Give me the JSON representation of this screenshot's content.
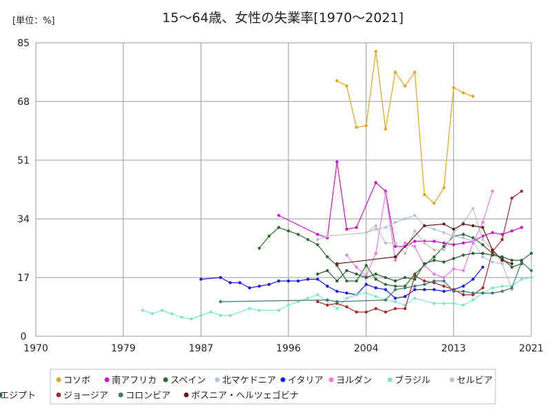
{
  "chart_data": {
    "type": "line",
    "title": "15〜64歳、女性の失業率[1970〜2021]",
    "unit_label": "[単位：%]",
    "xlim": [
      1970,
      2021
    ],
    "ylim": [
      0,
      85
    ],
    "x_ticks": [
      1970,
      1979,
      1987,
      1996,
      2004,
      2013,
      2021
    ],
    "y_ticks": [
      0,
      17,
      34,
      51,
      68,
      85
    ],
    "grid": true,
    "legend_position": "bottom",
    "series": [
      {
        "name": "コソボ",
        "color": "#E3A51A",
        "x": [
          2001,
          2002,
          2003,
          2004,
          2005,
          2006,
          2007,
          2008,
          2009,
          2010,
          2011,
          2012,
          2013,
          2014,
          2015,
          2016,
          2017
        ],
        "y": [
          74,
          72.5,
          60.5,
          61,
          82.5,
          60,
          76.5,
          72.5,
          76.5,
          41,
          38.5,
          43,
          72,
          70.5,
          69.5,
          null,
          null
        ]
      },
      {
        "name": "南アフリカ",
        "color": "#CC12CC",
        "x": [
          1995,
          1999,
          2000,
          2001,
          2002,
          2003,
          2004,
          2005,
          2006,
          2007,
          2008,
          2009,
          2010,
          2011,
          2012,
          2013,
          2014,
          2015,
          2016,
          2017,
          2018,
          2019,
          2020
        ],
        "y": [
          35,
          29.5,
          28.5,
          50.5,
          31,
          31.5,
          null,
          44.5,
          42,
          26,
          26,
          27.5,
          27.5,
          27.5,
          27,
          26.5,
          27,
          27.5,
          29,
          30,
          29.5,
          30.5,
          31.5
        ]
      },
      {
        "name": "スペイン",
        "color": "#2E6B2E",
        "x": [
          1993,
          1994,
          1995,
          1996,
          1997,
          1998,
          1999,
          2000,
          2001,
          2002,
          2003,
          2004,
          2005,
          2006,
          2007,
          2008,
          2009,
          2010,
          2011,
          2012,
          2013,
          2014,
          2015,
          2016,
          2017,
          2018,
          2019,
          2020,
          2021
        ],
        "y": [
          25.5,
          29,
          31.5,
          30.5,
          29.5,
          28,
          26.5,
          23,
          20.5,
          16,
          16,
          20.5,
          16.5,
          15,
          14.5,
          14.5,
          18,
          20.5,
          23,
          26,
          29,
          29.5,
          28.5,
          26.5,
          24,
          22.5,
          20,
          21,
          null
        ]
      },
      {
        "name": "北マケドニア",
        "color": "#B0C4DE",
        "x": [
          2004,
          2005,
          2006,
          2007,
          2008,
          2009,
          2010,
          2011,
          2012,
          2013,
          2014,
          2015,
          2016,
          2017,
          2018,
          2019,
          2020
        ],
        "y": [
          30,
          31,
          31.5,
          33,
          34,
          35,
          32,
          31,
          30,
          29,
          28.5,
          27.5,
          23,
          21.5,
          21,
          null,
          null
        ]
      },
      {
        "name": "イタリア",
        "color": "#1A1AE6",
        "x": [
          1987,
          1989,
          1990,
          1991,
          1992,
          1993,
          1994,
          1995,
          1996,
          1997,
          1998,
          1999,
          2000,
          2001,
          2002,
          2003,
          2004,
          2005,
          2006,
          2007,
          2008,
          2009,
          2010,
          2011,
          2012,
          2013,
          2014,
          2015,
          2016
        ],
        "y": [
          16.5,
          17,
          15.5,
          15.5,
          14,
          14.5,
          15,
          16,
          16,
          16,
          16.5,
          16.5,
          14.5,
          13,
          12.5,
          12,
          15,
          14,
          13.5,
          11,
          11.5,
          13.5,
          13.5,
          13.5,
          13,
          13.5,
          14.5,
          16.5,
          20
        ]
      },
      {
        "name": "ヨルダン",
        "color": "#E77BE7",
        "x": [
          2002,
          2003,
          2004,
          2005,
          2006,
          2007,
          2008,
          2009,
          2010,
          2011,
          2012,
          2013,
          2014,
          2015,
          2016,
          2017
        ],
        "y": [
          23.5,
          20,
          17.5,
          24,
          41.5,
          22,
          27,
          26,
          20.5,
          18,
          17,
          19.5,
          19,
          27,
          33,
          42
        ]
      },
      {
        "name": "ブラジル",
        "color": "#7EE8C0",
        "x": [
          1981,
          1982,
          1983,
          1984,
          1985,
          1986,
          1987,
          1988,
          1989,
          1990,
          1992,
          1993,
          1995,
          1996,
          1997,
          1998,
          1999,
          2001,
          2002,
          2003,
          2004,
          2005,
          2006,
          2007,
          2008,
          2009,
          2011,
          2012,
          2013,
          2014,
          2015,
          2016,
          2017,
          2018,
          2019,
          2020,
          2021
        ],
        "y": [
          7.5,
          6.5,
          7.5,
          6.5,
          5.5,
          5,
          6,
          7,
          6,
          6,
          8,
          7.5,
          7.5,
          9,
          10,
          11,
          12,
          8,
          11,
          12,
          12.5,
          11.5,
          10.5,
          10,
          9,
          11,
          9.5,
          9.5,
          9.5,
          9,
          10.5,
          12.5,
          14,
          14.5,
          14.5,
          16.5,
          17
        ]
      },
      {
        "name": "セルビア",
        "color": "#C0C0C0",
        "x": [
          1999,
          2000,
          2004,
          2005,
          2006,
          2007,
          2008,
          2009,
          2010,
          2011,
          2012,
          2013,
          2014,
          2015,
          2016,
          2017,
          2018,
          2019
        ],
        "y": [
          28,
          29,
          30,
          32,
          27,
          27,
          24,
          30.5,
          27,
          25,
          25,
          30,
          33,
          37,
          28,
          25,
          21,
          13.5
        ]
      },
      {
        "name": "ジョージア",
        "color": "#A52A2A",
        "x": [
          1999,
          2000,
          2001,
          2002,
          2003,
          2004,
          2005,
          2006,
          2007,
          2008,
          2009,
          2010,
          2011,
          2012,
          2013,
          2014,
          2015,
          2016,
          2017,
          2018,
          2019,
          2020
        ],
        "y": [
          10,
          9,
          9.5,
          8.5,
          7,
          7,
          8,
          7,
          8,
          8,
          17.5,
          16,
          15.5,
          14.5,
          13.5,
          12,
          12,
          14,
          24.5,
          28,
          40,
          42
        ]
      },
      {
        "name": "コロンビア",
        "color": "#3A7A78",
        "x": [
          1989,
          2000,
          2001,
          2002,
          2003,
          2004,
          2005,
          2006,
          2007,
          2008,
          2009,
          2010,
          2011,
          2012,
          2013,
          2014,
          2015,
          2016,
          2017,
          2018,
          2019,
          2020,
          2021
        ],
        "y": [
          10,
          10.5,
          10,
          null,
          null,
          null,
          null,
          10.5,
          13.5,
          14,
          14.5,
          15,
          16,
          16,
          13,
          13,
          12.5,
          12.5,
          12.5,
          13,
          14,
          21.5,
          19
        ]
      },
      {
        "name": "ボスニア・ヘルツェゴビナ",
        "color": "#6B1A1A",
        "x": [
          2001,
          2007,
          2010,
          2012,
          2013,
          2014,
          2015,
          2016,
          2017,
          2018,
          2019,
          2020
        ],
        "y": [
          21,
          23,
          32,
          32.5,
          31,
          32.5,
          32,
          31.5,
          25,
          22,
          21,
          null
        ]
      },
      {
        "name": "エジプト",
        "color": "#2F5E3C",
        "x": [
          1999,
          2000,
          2001,
          2002,
          2003,
          2004,
          2005,
          2006,
          2007,
          2008,
          2009,
          2010,
          2011,
          2012,
          2013,
          2014,
          2015,
          2016,
          2017,
          2018,
          2019,
          2020,
          2021
        ],
        "y": [
          18,
          19,
          16,
          19,
          18,
          17,
          18,
          17,
          16,
          17,
          16.5,
          21,
          22,
          21.5,
          22.5,
          23.5,
          24,
          24,
          23.5,
          23,
          22,
          22,
          24
        ]
      }
    ]
  }
}
